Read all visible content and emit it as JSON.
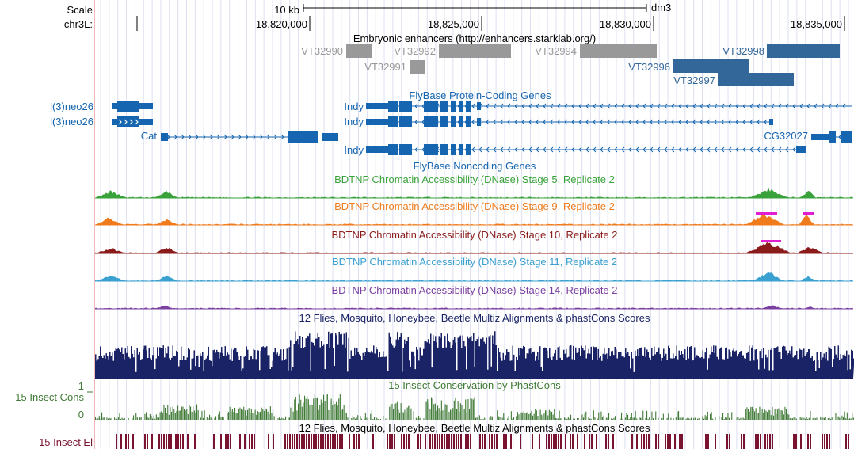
{
  "browser": {
    "scale_label": "Scale",
    "chrom_label": "chr3L:",
    "scale_bar_label": "10 kb",
    "assembly": "dm3",
    "positions": [
      "18,820,000",
      "18,825,000",
      "18,830,000",
      "18,835,000"
    ]
  },
  "tracks": {
    "enhancers": {
      "title": "Embryonic enhancers (http://enhancers.starklab.org/)",
      "items": [
        {
          "name": "VT32990",
          "color": "#999999"
        },
        {
          "name": "VT32991",
          "color": "#999999"
        },
        {
          "name": "VT32992",
          "color": "#999999"
        },
        {
          "name": "VT32994",
          "color": "#999999"
        },
        {
          "name": "VT32996",
          "color": "#336699"
        },
        {
          "name": "VT32997",
          "color": "#336699"
        },
        {
          "name": "VT32998",
          "color": "#336699"
        }
      ]
    },
    "genes": {
      "protein_title": "FlyBase Protein-Coding Genes",
      "noncoding_title": "FlyBase Noncoding Genes",
      "color": "#1565b0",
      "left_labels": [
        "l(3)neo26",
        "l(3)neo26"
      ],
      "names": [
        "Indy",
        "Indy",
        "Indy",
        "Cat",
        "CG32027"
      ]
    },
    "dnase": [
      {
        "title": "BDTNP Chromatin Accessibility (DNase) Stage 5, Replicate 2",
        "color": "#3aa23a"
      },
      {
        "title": "BDTNP Chromatin Accessibility (DNase) Stage 9, Replicate 2",
        "color": "#f07b1c"
      },
      {
        "title": "BDTNP Chromatin Accessibility (DNase) Stage 10, Replicate 2",
        "color": "#8b1a1a"
      },
      {
        "title": "BDTNP Chromatin Accessibility (DNase) Stage 11, Replicate 2",
        "color": "#3aa0d0"
      },
      {
        "title": "BDTNP Chromatin Accessibility (DNase) Stage 14, Replicate 2",
        "color": "#7b3fa0"
      }
    ],
    "multiz": {
      "title": "12 Flies, Mosquito, Honeybee, Beetle Multiz Alignments & phastCons Scores",
      "color": "#1a2366"
    },
    "cons": {
      "title": "15 Insect Conservation by PhastCons",
      "side_label": "15 Insect Cons",
      "ymax": "1",
      "ymin": "0",
      "color": "#3f7a35"
    },
    "elements": {
      "title": "12 Flies, Mosquito, Honeybee, Beetle Multiz Alignments & phastCons Scores",
      "side_label": "15 Insect El",
      "color": "#7a1330"
    }
  }
}
